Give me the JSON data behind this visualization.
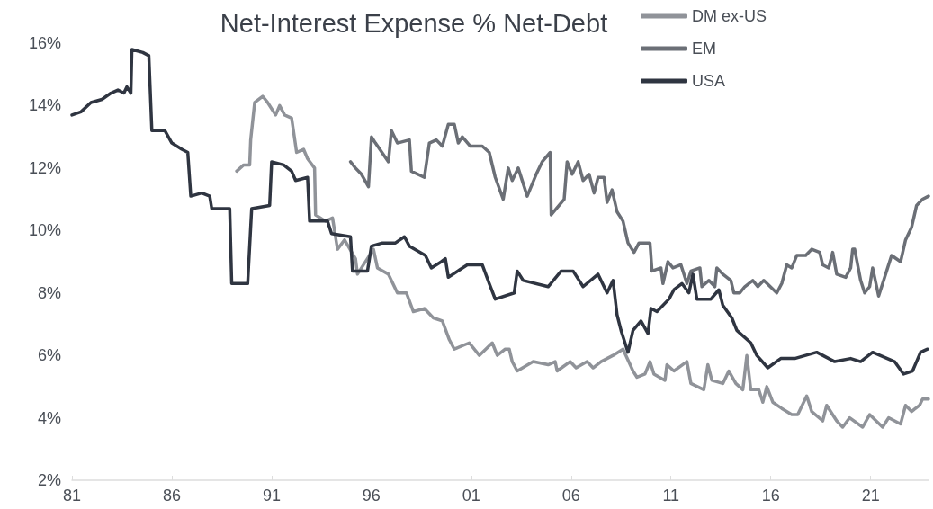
{
  "chart_data": {
    "type": "line",
    "title": "Net-Interest Expense % Net-Debt",
    "legend": "top right",
    "line_style": "solid",
    "xlim": [
      1981,
      2023.9
    ],
    "xticks": [
      {
        "value": 1981,
        "label": "81"
      },
      {
        "value": 1986,
        "label": "86"
      },
      {
        "value": 1991,
        "label": "91"
      },
      {
        "value": 1996,
        "label": "96"
      },
      {
        "value": 2001,
        "label": "01"
      },
      {
        "value": 2006,
        "label": "06"
      },
      {
        "value": 2011,
        "label": "11"
      },
      {
        "value": 2016,
        "label": "16"
      },
      {
        "value": 2021,
        "label": "21"
      }
    ],
    "ylim": [
      2,
      16
    ],
    "yticks": [
      {
        "value": 2,
        "label": "2%"
      },
      {
        "value": 4,
        "label": "4%"
      },
      {
        "value": 6,
        "label": "6%"
      },
      {
        "value": 8,
        "label": "8%"
      },
      {
        "value": 10,
        "label": "10%"
      },
      {
        "value": 12,
        "label": "12%"
      },
      {
        "value": 14,
        "label": "14%"
      },
      {
        "value": 16,
        "label": "16%"
      }
    ],
    "series": [
      {
        "name": "DM ex-US",
        "color": "#909399",
        "x": [
          1989.25,
          1989.6,
          1989.9,
          1989.95,
          1990.15,
          1990.55,
          1990.8,
          1991.2,
          1991.4,
          1991.65,
          1992.0,
          1992.25,
          1992.6,
          1992.8,
          1993.15,
          1993.2,
          1993.7,
          1994.05,
          1994.3,
          1994.65,
          1995.2,
          1995.3,
          1996.1,
          1996.3,
          1996.85,
          1997.3,
          1997.75,
          1998.1,
          1998.65,
          1999.1,
          1999.55,
          1999.9,
          2000.15,
          2000.9,
          2001.4,
          2002.05,
          2002.3,
          2002.7,
          2002.9,
          2003.05,
          2003.3,
          2004.1,
          2004.85,
          2005.2,
          2005.3,
          2005.95,
          2006.25,
          2006.8,
          2007.1,
          2007.5,
          2008.1,
          2008.35,
          2008.6,
          2009.1,
          2009.3,
          2009.7,
          2009.95,
          2010.15,
          2010.7,
          2010.8,
          2011.15,
          2011.8,
          2012.0,
          2012.65,
          2012.85,
          2013.05,
          2013.6,
          2013.9,
          2014.25,
          2014.6,
          2014.8,
          2015.0,
          2015.4,
          2015.6,
          2015.8,
          2016.1,
          2016.55,
          2017.05,
          2017.35,
          2017.8,
          2018.05,
          2018.6,
          2018.8,
          2019.3,
          2019.6,
          2019.95,
          2020.6,
          2020.95,
          2021.6,
          2021.9,
          2022.5,
          2022.75,
          2023.05,
          2023.45,
          2023.6,
          2023.9
        ],
        "values": [
          11.9,
          12.1,
          12.1,
          12.9,
          14.1,
          14.3,
          14.1,
          13.7,
          14.0,
          13.7,
          13.6,
          12.5,
          12.6,
          12.3,
          12.0,
          10.5,
          10.3,
          10.4,
          9.4,
          9.7,
          9.1,
          8.6,
          9.4,
          8.8,
          8.6,
          8.0,
          8.0,
          7.4,
          7.5,
          7.2,
          7.1,
          6.5,
          6.2,
          6.4,
          6.0,
          6.4,
          6.0,
          6.2,
          6.2,
          5.8,
          5.5,
          5.8,
          5.7,
          5.8,
          5.5,
          5.8,
          5.6,
          5.8,
          5.6,
          5.8,
          6.0,
          6.1,
          6.2,
          5.5,
          5.3,
          5.4,
          5.8,
          5.4,
          5.2,
          5.7,
          5.5,
          5.8,
          5.1,
          4.9,
          5.7,
          5.2,
          5.1,
          5.5,
          5.1,
          4.9,
          6.0,
          4.9,
          4.9,
          4.5,
          5.0,
          4.5,
          4.3,
          4.1,
          4.1,
          4.7,
          4.2,
          3.9,
          4.4,
          3.9,
          3.7,
          4.0,
          3.7,
          4.1,
          3.7,
          4.0,
          3.8,
          4.4,
          4.2,
          4.4,
          4.6,
          4.6
        ]
      },
      {
        "name": "EM",
        "color": "#6b6f76",
        "x": [
          1994.95,
          1995.2,
          1995.5,
          1995.85,
          1996.0,
          1996.2,
          1996.85,
          1997.0,
          1997.3,
          1997.9,
          1998.0,
          1998.65,
          1998.9,
          1999.25,
          1999.55,
          1999.85,
          2000.15,
          2000.35,
          2000.55,
          2000.95,
          2001.55,
          2001.9,
          2002.2,
          2002.6,
          2002.85,
          2003.05,
          2003.35,
          2003.8,
          2004.25,
          2004.55,
          2004.95,
          2005.0,
          2005.65,
          2005.8,
          2006.05,
          2006.35,
          2006.6,
          2006.9,
          2007.15,
          2007.35,
          2007.65,
          2007.8,
          2008.05,
          2008.3,
          2008.6,
          2008.85,
          2009.15,
          2009.4,
          2009.95,
          2010.05,
          2010.5,
          2010.6,
          2010.85,
          2011.1,
          2011.5,
          2011.8,
          2012.0,
          2012.45,
          2012.55,
          2012.9,
          2013.2,
          2013.3,
          2013.6,
          2014.0,
          2014.15,
          2014.45,
          2014.7,
          2015.1,
          2015.35,
          2015.65,
          2016.3,
          2016.55,
          2016.8,
          2017.05,
          2017.3,
          2017.75,
          2018.05,
          2018.45,
          2018.6,
          2018.9,
          2019.1,
          2019.3,
          2019.75,
          2020.0,
          2020.1,
          2020.2,
          2020.5,
          2020.7,
          2020.95,
          2021.1,
          2021.4,
          2021.7,
          2022.05,
          2022.5,
          2022.75,
          2023.05,
          2023.3,
          2023.6,
          2023.9
        ],
        "values": [
          12.2,
          12.0,
          11.8,
          11.4,
          13.0,
          12.8,
          12.2,
          13.2,
          12.8,
          12.9,
          11.9,
          11.7,
          12.8,
          12.9,
          12.7,
          13.4,
          13.4,
          12.8,
          13.0,
          12.7,
          12.7,
          12.5,
          11.7,
          11.0,
          12.0,
          11.6,
          12.0,
          11.1,
          11.8,
          12.2,
          12.5,
          10.5,
          11.0,
          12.2,
          11.8,
          12.2,
          11.6,
          11.8,
          11.2,
          11.7,
          11.7,
          10.9,
          11.3,
          10.6,
          10.3,
          9.6,
          9.3,
          9.6,
          9.6,
          8.7,
          8.8,
          8.3,
          9.0,
          8.8,
          8.9,
          8.3,
          8.7,
          8.8,
          8.2,
          8.4,
          8.2,
          8.8,
          8.6,
          8.4,
          8.0,
          8.0,
          8.2,
          8.4,
          8.2,
          8.4,
          8.0,
          8.3,
          8.9,
          8.8,
          9.2,
          9.2,
          9.4,
          9.3,
          8.9,
          8.8,
          9.3,
          8.6,
          8.5,
          8.8,
          9.4,
          9.4,
          8.4,
          8.0,
          8.2,
          8.8,
          7.9,
          8.5,
          9.2,
          9.0,
          9.7,
          10.1,
          10.8,
          11.0,
          11.1
        ]
      },
      {
        "name": "USA",
        "color": "#2f3541",
        "x": [
          1981.0,
          1981.45,
          1981.95,
          1982.5,
          1982.95,
          1983.3,
          1983.6,
          1983.75,
          1983.95,
          1984.0,
          1984.55,
          1984.85,
          1985.0,
          1985.65,
          1986.0,
          1986.5,
          1986.8,
          1986.95,
          1987.5,
          1987.9,
          1988.0,
          1988.9,
          1989.0,
          1989.8,
          1990.0,
          1990.9,
          1991.0,
          1991.6,
          1992.0,
          1992.2,
          1992.8,
          1992.9,
          1993.8,
          1994.0,
          1994.95,
          1995.05,
          1995.8,
          1996.0,
          1996.55,
          1997.2,
          1997.65,
          1997.9,
          1998.7,
          1999.0,
          1999.5,
          1999.7,
          1999.85,
          2000.8,
          2001.55,
          2001.9,
          2002.2,
          2003.15,
          2003.3,
          2003.6,
          2004.85,
          2005.5,
          2006.1,
          2006.6,
          2007.35,
          2007.8,
          2008.1,
          2008.3,
          2008.5,
          2008.85,
          2009.1,
          2009.5,
          2009.85,
          2010.0,
          2010.3,
          2010.9,
          2011.15,
          2011.55,
          2011.9,
          2012.1,
          2012.3,
          2013.0,
          2013.4,
          2013.6,
          2014.05,
          2014.3,
          2015.0,
          2015.3,
          2015.85,
          2016.5,
          2017.2,
          2018.3,
          2019.2,
          2020.0,
          2020.5,
          2021.1,
          2022.2,
          2022.65,
          2023.1,
          2023.5,
          2023.85
        ],
        "values": [
          13.7,
          13.8,
          14.1,
          14.2,
          14.4,
          14.5,
          14.4,
          14.6,
          14.4,
          15.8,
          15.7,
          15.6,
          13.2,
          13.2,
          12.8,
          12.6,
          12.5,
          11.1,
          11.2,
          11.1,
          10.7,
          10.7,
          8.3,
          8.3,
          10.7,
          10.8,
          12.2,
          12.1,
          11.9,
          11.6,
          11.7,
          10.3,
          10.3,
          9.9,
          9.8,
          8.7,
          8.7,
          9.5,
          9.6,
          9.6,
          9.8,
          9.5,
          9.2,
          8.8,
          9.0,
          9.1,
          8.5,
          8.9,
          8.9,
          8.3,
          7.8,
          8.0,
          8.7,
          8.4,
          8.2,
          8.7,
          8.7,
          8.2,
          8.6,
          8.0,
          8.4,
          7.3,
          6.8,
          6.1,
          6.8,
          7.1,
          6.7,
          7.5,
          7.4,
          7.8,
          8.1,
          8.3,
          8.0,
          8.6,
          7.8,
          7.8,
          8.1,
          7.6,
          7.2,
          6.8,
          6.4,
          6.0,
          5.6,
          5.9,
          5.9,
          6.1,
          5.8,
          5.9,
          5.8,
          6.1,
          5.8,
          5.4,
          5.5,
          6.1,
          6.2
        ]
      }
    ]
  }
}
